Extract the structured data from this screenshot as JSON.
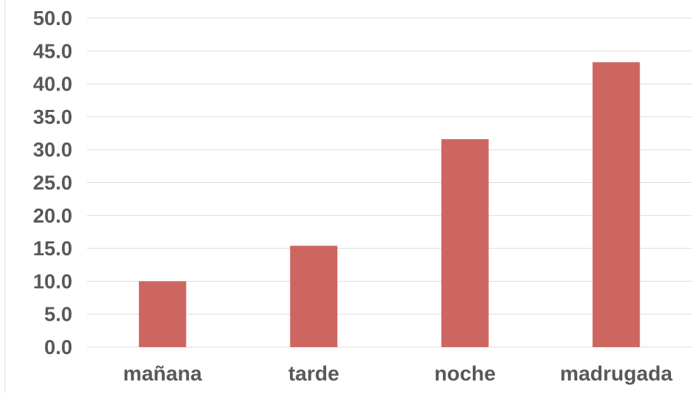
{
  "chart_data": {
    "type": "bar",
    "categories": [
      "mañana",
      "tarde",
      "noche",
      "madrugada"
    ],
    "values": [
      10.0,
      15.4,
      31.6,
      43.3
    ],
    "title": "",
    "xlabel": "",
    "ylabel": "",
    "ylim": [
      0,
      50
    ],
    "yticks": [
      "0.0",
      "5.0",
      "10.0",
      "15.0",
      "20.0",
      "25.0",
      "30.0",
      "35.0",
      "40.0",
      "45.0",
      "50.0"
    ],
    "grid": true,
    "legend": "none",
    "colors": {
      "bar": "#CD6660",
      "grid": "#D9D9D9",
      "text": "#595959"
    }
  }
}
